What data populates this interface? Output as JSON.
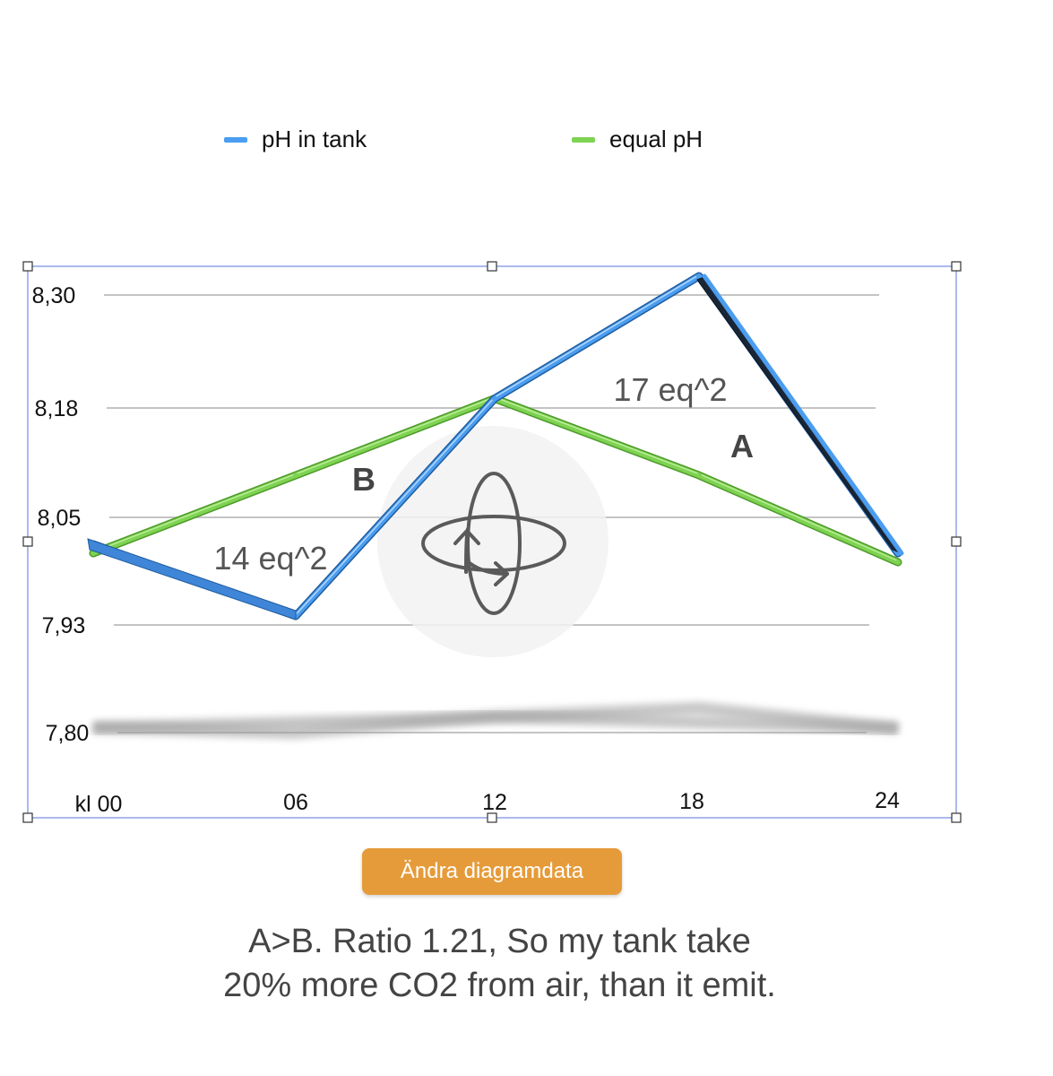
{
  "chart_data": {
    "type": "line",
    "categories": [
      "kl 00",
      "06",
      "12",
      "18",
      "24"
    ],
    "y_ticks": [
      "8,30",
      "8,18",
      "8,05",
      "7,93",
      "7,80"
    ],
    "ylim": [
      7.8,
      8.3
    ],
    "grid": true,
    "legend_position": "top",
    "series": [
      {
        "name": "pH in tank",
        "color": "#4a9df0",
        "values": [
          8.02,
          7.94,
          8.19,
          8.32,
          8.01
        ]
      },
      {
        "name": "equal pH",
        "color": "#7ed352",
        "values": [
          8.01,
          8.1,
          8.19,
          8.1,
          8.0
        ]
      }
    ],
    "annotations": {
      "area_a_value": "17 eq^2",
      "area_a_label": "A",
      "area_b_value": "14 eq^2",
      "area_b_label": "B"
    }
  },
  "edit_button_label": "Ändra diagramdata",
  "caption_line1": "A>B. Ratio 1.21, So my tank take",
  "caption_line2": "20% more CO2 from air, than it emit.",
  "icons": {
    "rotate": "rotate-3d-icon"
  }
}
